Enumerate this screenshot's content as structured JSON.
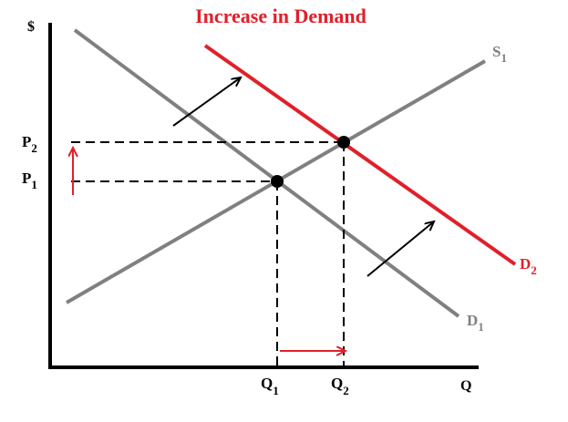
{
  "title": "Increase in Demand",
  "axes": {
    "y": "$",
    "x": "Q"
  },
  "labels": {
    "p2": {
      "text": "P",
      "sub": "2"
    },
    "p1": {
      "text": "P",
      "sub": "1"
    },
    "s1": {
      "text": "S",
      "sub": "1"
    },
    "d2": {
      "text": "D",
      "sub": "2"
    },
    "d1": {
      "text": "D",
      "sub": "1"
    },
    "q1": {
      "text": "Q",
      "sub": "1"
    },
    "q2": {
      "text": "Q",
      "sub": "2"
    }
  }
}
